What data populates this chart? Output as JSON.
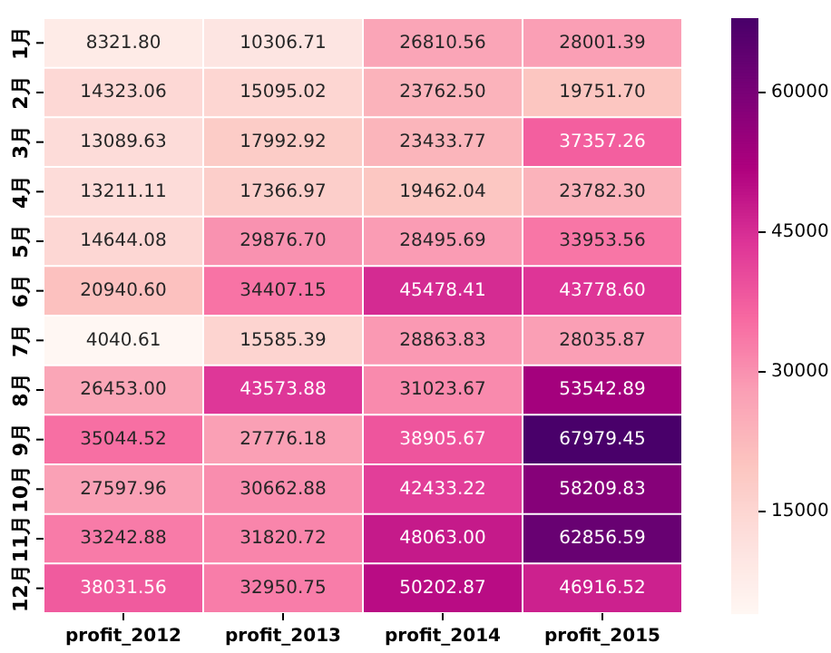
{
  "chart_data": {
    "type": "heatmap",
    "categories": [
      "profit_2012",
      "profit_2013",
      "profit_2014",
      "profit_2015"
    ],
    "y_categories": [
      "1月",
      "2月",
      "3月",
      "4月",
      "5月",
      "6月",
      "7月",
      "8月",
      "9月",
      "10月",
      "11月",
      "12月"
    ],
    "cells": [
      [
        8321.8,
        10306.71,
        26810.56,
        28001.39
      ],
      [
        14323.06,
        15095.02,
        23762.5,
        19751.7
      ],
      [
        13089.63,
        17992.92,
        23433.77,
        37357.26
      ],
      [
        13211.11,
        17366.97,
        19462.04,
        23782.3
      ],
      [
        14644.08,
        29876.7,
        28495.69,
        33953.56
      ],
      [
        20940.6,
        34407.15,
        45478.41,
        43778.6
      ],
      [
        4040.61,
        15585.39,
        28863.83,
        28035.87
      ],
      [
        26453.0,
        43573.88,
        31023.67,
        53542.89
      ],
      [
        35044.52,
        27776.18,
        38905.67,
        67979.45
      ],
      [
        27597.96,
        30662.88,
        42433.22,
        58209.83
      ],
      [
        33242.88,
        31820.72,
        48063.0,
        62856.59
      ],
      [
        38031.56,
        32950.75,
        50202.87,
        46916.52
      ]
    ],
    "cell_labels": [
      [
        "8321.80",
        "10306.71",
        "26810.56",
        "28001.39"
      ],
      [
        "14323.06",
        "15095.02",
        "23762.50",
        "19751.70"
      ],
      [
        "13089.63",
        "17992.92",
        "23433.77",
        "37357.26"
      ],
      [
        "13211.11",
        "17366.97",
        "19462.04",
        "23782.30"
      ],
      [
        "14644.08",
        "29876.70",
        "28495.69",
        "33953.56"
      ],
      [
        "20940.60",
        "34407.15",
        "45478.41",
        "43778.60"
      ],
      [
        "4040.61",
        "15585.39",
        "28863.83",
        "28035.87"
      ],
      [
        "26453.00",
        "43573.88",
        "31023.67",
        "53542.89"
      ],
      [
        "35044.52",
        "27776.18",
        "38905.67",
        "67979.45"
      ],
      [
        "27597.96",
        "30662.88",
        "42433.22",
        "58209.83"
      ],
      [
        "33242.88",
        "31820.72",
        "48063.00",
        "62856.59"
      ],
      [
        "38031.56",
        "32950.75",
        "50202.87",
        "46916.52"
      ]
    ],
    "clim": [
      4040.61,
      67979.45
    ],
    "cticks": [
      15000,
      30000,
      45000,
      60000
    ]
  }
}
